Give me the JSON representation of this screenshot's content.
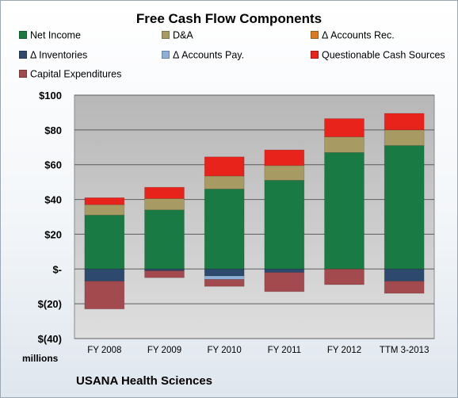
{
  "colors": {
    "net_income": "#1a7a43",
    "da": "#a89a63",
    "accounts_rec": "#d97a1e",
    "inventories": "#2d4a6e",
    "accounts_pay": "#8fb0d6",
    "questionable": "#e8231c",
    "capex": "#a34a4e"
  },
  "chart_data": {
    "type": "bar",
    "stacked": true,
    "title": "Free Cash Flow Components",
    "ylabel": "millions",
    "ylim": [
      -40,
      100
    ],
    "yticks": [
      -40,
      -20,
      0,
      20,
      40,
      60,
      80,
      100
    ],
    "ytick_labels": [
      "$(40)",
      "$(20)",
      "$-",
      "$20",
      "$40",
      "$60",
      "$80",
      "$100"
    ],
    "grid": true,
    "legend_position": "top",
    "categories": [
      "FY 2008",
      "FY 2009",
      "FY 2010",
      "FY 2011",
      "FY 2012",
      "TTM 3-2013"
    ],
    "series": [
      {
        "name": "Net Income",
        "key": "net_income",
        "values": [
          31,
          34,
          46,
          51,
          67,
          71
        ]
      },
      {
        "name": "D&A",
        "key": "da",
        "values": [
          6,
          6.5,
          7.5,
          8.5,
          9,
          9
        ]
      },
      {
        "name": "Δ Accounts Rec.",
        "key": "accounts_rec",
        "values": [
          0,
          0,
          0,
          0,
          0,
          0
        ]
      },
      {
        "name": "Δ Inventories",
        "key": "inventories",
        "values": [
          -7,
          -1,
          -4,
          -2,
          0,
          -7
        ]
      },
      {
        "name": "Δ Accounts Pay.",
        "key": "accounts_pay",
        "values": [
          0,
          0,
          -2,
          0,
          0,
          0
        ]
      },
      {
        "name": "Questionable Cash Sources",
        "key": "questionable",
        "values": [
          4,
          6.5,
          11,
          9,
          10.5,
          9.5
        ]
      },
      {
        "name": "Capital Expenditures",
        "key": "capex",
        "values": [
          -16,
          -4,
          -4,
          -11,
          -9,
          -7
        ]
      }
    ],
    "footer": "USANA Health Sciences"
  }
}
